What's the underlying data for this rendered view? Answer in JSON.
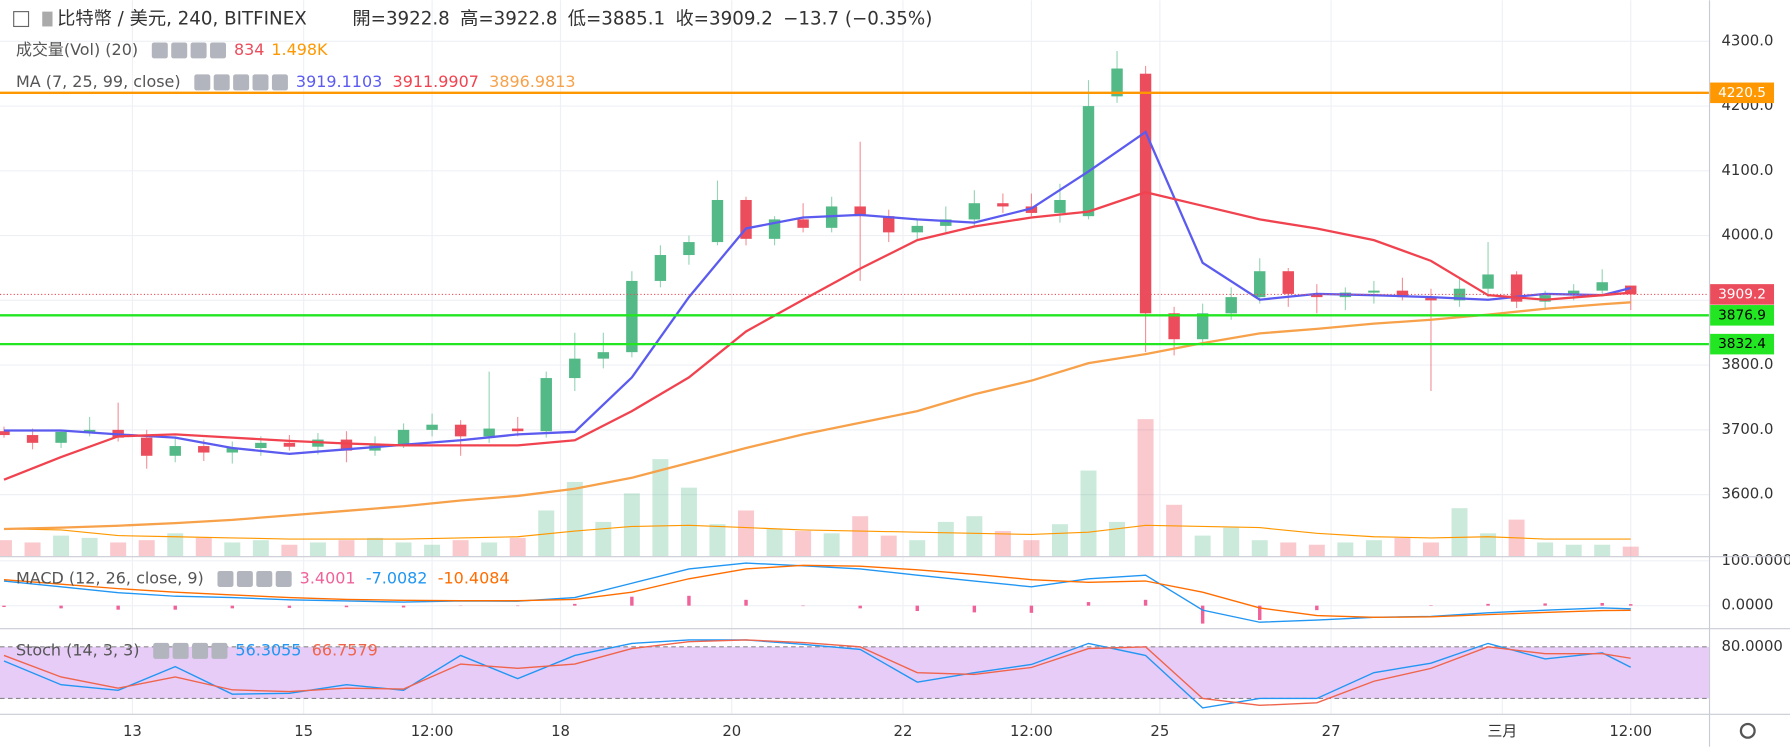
{
  "chart_data": {
    "type": "candlestick",
    "symbol": "比特幣 / 美元, 240, BITFINEX",
    "ohlc_labels": [
      "開=",
      "高=",
      "低=",
      "收="
    ],
    "change": "−13.7 (−0.35%)",
    "up_color": "#53b987",
    "down_color": "#eb4d5c",
    "candles": [
      [
        3698,
        3705,
        3688,
        3692
      ],
      [
        3692,
        3702,
        3670,
        3680
      ],
      [
        3680,
        3700,
        3672,
        3697
      ],
      [
        3697,
        3720,
        3690,
        3700
      ],
      [
        3700,
        3742,
        3682,
        3688
      ],
      [
        3688,
        3700,
        3640,
        3660
      ],
      [
        3660,
        3690,
        3650,
        3675
      ],
      [
        3675,
        3685,
        3652,
        3665
      ],
      [
        3665,
        3682,
        3648,
        3672
      ],
      [
        3672,
        3690,
        3660,
        3680
      ],
      [
        3680,
        3692,
        3668,
        3674
      ],
      [
        3674,
        3695,
        3662,
        3685
      ],
      [
        3685,
        3698,
        3650,
        3668
      ],
      [
        3668,
        3690,
        3660,
        3678
      ],
      [
        3678,
        3710,
        3672,
        3700
      ],
      [
        3700,
        3725,
        3690,
        3708
      ],
      [
        3708,
        3715,
        3660,
        3690
      ],
      [
        3690,
        3790,
        3680,
        3702
      ],
      [
        3702,
        3720,
        3690,
        3698
      ],
      [
        3698,
        3790,
        3688,
        3780
      ],
      [
        3780,
        3850,
        3760,
        3810
      ],
      [
        3810,
        3850,
        3795,
        3820
      ],
      [
        3820,
        3945,
        3812,
        3930
      ],
      [
        3930,
        3985,
        3920,
        3970
      ],
      [
        3970,
        4000,
        3955,
        3990
      ],
      [
        3990,
        4085,
        3985,
        4055
      ],
      [
        4055,
        4060,
        3985,
        3995
      ],
      [
        3995,
        4030,
        3985,
        4025
      ],
      [
        4025,
        4050,
        4005,
        4012
      ],
      [
        4012,
        4060,
        4005,
        4045
      ],
      [
        4045,
        4145,
        3930,
        4030
      ],
      [
        4030,
        4040,
        3990,
        4005
      ],
      [
        4005,
        4025,
        3995,
        4015
      ],
      [
        4015,
        4045,
        4005,
        4025
      ],
      [
        4025,
        4070,
        4015,
        4050
      ],
      [
        4050,
        4065,
        4035,
        4045
      ],
      [
        4045,
        4065,
        4030,
        4035
      ],
      [
        4035,
        4080,
        4020,
        4055
      ],
      [
        4030,
        4240,
        4025,
        4200
      ],
      [
        4215,
        4285,
        4205,
        4258
      ],
      [
        4250,
        4262,
        3820,
        3880
      ],
      [
        3880,
        3890,
        3815,
        3840
      ],
      [
        3840,
        3895,
        3830,
        3880
      ],
      [
        3880,
        3920,
        3870,
        3905
      ],
      [
        3905,
        3965,
        3895,
        3945
      ],
      [
        3945,
        3950,
        3890,
        3910
      ],
      [
        3910,
        3925,
        3880,
        3905
      ],
      [
        3905,
        3920,
        3885,
        3912
      ],
      [
        3912,
        3930,
        3895,
        3915
      ],
      [
        3915,
        3935,
        3900,
        3905
      ],
      [
        3905,
        3918,
        3760,
        3900
      ],
      [
        3900,
        3935,
        3890,
        3918
      ],
      [
        3918,
        3990,
        3905,
        3940
      ],
      [
        3940,
        3945,
        3888,
        3898
      ],
      [
        3898,
        3915,
        3885,
        3908
      ],
      [
        3908,
        3925,
        3900,
        3915
      ],
      [
        3915,
        3948,
        3908,
        3928
      ],
      [
        3922.8,
        3922.8,
        3885.1,
        3909.2
      ]
    ],
    "ylim": [
      3505,
      4363.5
    ],
    "yticks": [
      {
        "value": 3600,
        "label": "3600.0"
      },
      {
        "value": 3700,
        "label": "3700.0"
      },
      {
        "value": 3800,
        "label": "3800.0"
      },
      {
        "value": 3900,
        "label": "3900.0"
      },
      {
        "value": 4000,
        "label": "4000.0"
      },
      {
        "value": 4100,
        "label": "4100.0"
      },
      {
        "value": 4200,
        "label": "4200.0"
      },
      {
        "value": 4300,
        "label": "4300.0"
      }
    ],
    "xticks": [
      {
        "value": 4.5,
        "label": "13"
      },
      {
        "value": 10.5,
        "label": "15"
      },
      {
        "value": 15,
        "label": "12:00"
      },
      {
        "value": 19.5,
        "label": "18"
      },
      {
        "value": 25.5,
        "label": "20"
      },
      {
        "value": 31.5,
        "label": "22"
      },
      {
        "value": 36,
        "label": "12:00"
      },
      {
        "value": 40.5,
        "label": "25"
      },
      {
        "value": 46.5,
        "label": "27"
      },
      {
        "value": 52.5,
        "label": "三月"
      },
      {
        "value": 57,
        "label": "12:00"
      }
    ],
    "line_x": [
      0,
      2,
      4,
      6,
      8,
      10,
      12,
      14,
      16,
      18,
      20,
      22,
      24,
      26,
      28,
      30,
      32,
      34,
      36,
      38,
      40,
      42,
      44,
      46,
      48,
      50,
      52,
      54,
      56,
      57
    ],
    "volume": {
      "label": "成交量(Vol) (20)",
      "ylim": [
        0,
        48700
      ],
      "values": [
        1400,
        1200,
        1800,
        1600,
        1200,
        1400,
        2000,
        1600,
        1200,
        1400,
        1000,
        1200,
        1400,
        1600,
        1200,
        1000,
        1400,
        1200,
        1600,
        4000,
        6500,
        3000,
        5500,
        8500,
        6000,
        2800,
        4000,
        2400,
        2200,
        2000,
        3500,
        1800,
        1400,
        3000,
        3500,
        2200,
        1400,
        2800,
        7500,
        3000,
        12000,
        4500,
        1800,
        2500,
        1400,
        1200,
        1000,
        1200,
        1400,
        1600,
        1200,
        4200,
        2000,
        3200,
        1200,
        1000,
        1000,
        834
      ],
      "ma": {
        "color": "#ff9800",
        "label": "1.498K",
        "values": [
          2400,
          2300,
          1800,
          1700,
          1600,
          1500,
          1500,
          1500,
          1600,
          1700,
          2200,
          2600,
          2700,
          2500,
          2300,
          2200,
          2100,
          2000,
          1900,
          2100,
          2700,
          2600,
          2500,
          2000,
          1700,
          1600,
          1700,
          1500,
          1500,
          1498
        ]
      }
    },
    "ma": {
      "label": "MA (7, 25, 99, close)",
      "series": [
        {
          "color": "#5b5bf0",
          "values": [
            3699,
            3699,
            3693,
            3688,
            3672,
            3663,
            3670,
            3677,
            3684,
            3693,
            3697,
            3781,
            3905,
            4011,
            4028,
            4032,
            4025,
            4020,
            4042,
            4099,
            4160,
            3958,
            3901,
            3910,
            3908,
            3905,
            3901,
            3910,
            3908,
            3919.1103
          ]
        },
        {
          "color": "#f0434f",
          "values": [
            3623,
            3658,
            3690,
            3693,
            3688,
            3683,
            3679,
            3676,
            3676,
            3676,
            3684,
            3729,
            3781,
            3852,
            3901,
            3949,
            3993,
            4014,
            4028,
            4037,
            4067,
            4046,
            4025,
            4011,
            3993,
            3961,
            3908,
            3901,
            3908,
            3911.9907
          ]
        },
        {
          "color": "#f7a14a",
          "values": [
            3547,
            3549,
            3552,
            3556,
            3561,
            3568,
            3575,
            3582,
            3591,
            3598,
            3609,
            3626,
            3649,
            3672,
            3693,
            3711,
            3729,
            3755,
            3776,
            3803,
            3817,
            3834,
            3849,
            3856,
            3864,
            3870,
            3878,
            3887,
            3894,
            3896.9813
          ]
        }
      ]
    },
    "price_lines": [
      {
        "value": 4220.5,
        "color": "#ff9800",
        "text_color": "#ffffff"
      },
      {
        "value": 3876.9,
        "color": "#22e622",
        "text_color": "#000000"
      },
      {
        "value": 3832.4,
        "color": "#22e622",
        "text_color": "#000000"
      }
    ],
    "macd": {
      "label": "MACD (12, 26, close, 9)",
      "ylim": [
        -50,
        107.9
      ],
      "yticks": [
        {
          "value": 0,
          "label": "0.0000"
        },
        {
          "value": 100,
          "label": "100.0000"
        }
      ],
      "histogram": {
        "color": "#f0629a",
        "values": [
          -3,
          -6,
          -9,
          -9,
          -6,
          -5,
          -3.5,
          -4,
          -0.5,
          -1,
          4,
          20,
          22,
          13,
          -1,
          -6,
          -12,
          -15,
          -16,
          8,
          13,
          -40,
          -32,
          -10,
          0,
          1,
          4,
          5,
          6,
          3.4001
        ]
      },
      "series": [
        {
          "color": "#2196f3",
          "values": [
            55,
            42,
            29,
            21,
            18,
            13,
            10.5,
            8,
            10.5,
            10,
            18,
            50,
            82,
            95,
            89,
            82,
            68,
            55,
            42,
            60,
            68,
            -10,
            -37,
            -32,
            -26,
            -24,
            -16,
            -10,
            -5,
            -7.0082
          ]
        },
        {
          "color": "#ff6d00",
          "values": [
            58,
            48,
            38,
            30,
            24,
            18,
            14,
            12,
            11,
            11,
            14,
            30,
            60,
            82,
            90,
            88,
            80,
            70,
            58,
            52,
            55,
            30,
            -5,
            -22,
            -26,
            -25,
            -20,
            -15,
            -11,
            -10.4084
          ]
        }
      ]
    },
    "stoch": {
      "label": "Stoch (14, 3, 3)",
      "ylim": [
        2.3,
        100.5
      ],
      "yticks": [
        {
          "value": 80,
          "label": "80.0000"
        }
      ],
      "band": [
        20,
        80
      ],
      "band_color": "#e6ccf7",
      "series": [
        {
          "color": "#2196f3",
          "values": [
            63.6,
            36,
            29.5,
            57,
            25,
            26,
            36,
            29.5,
            70,
            43,
            70,
            84,
            88,
            88,
            83,
            77,
            39,
            50,
            59.5,
            84,
            70,
            9,
            20,
            20,
            50,
            61,
            84,
            66,
            73,
            56.3055
          ]
        },
        {
          "color": "#f0644c",
          "values": [
            70,
            45,
            32,
            45,
            30,
            28,
            32,
            31,
            60,
            55,
            60,
            78,
            86,
            88,
            85,
            80,
            50,
            48,
            56,
            78,
            80,
            20,
            12,
            15,
            40,
            55,
            80,
            72,
            72,
            66.7579
          ]
        }
      ]
    }
  }
}
